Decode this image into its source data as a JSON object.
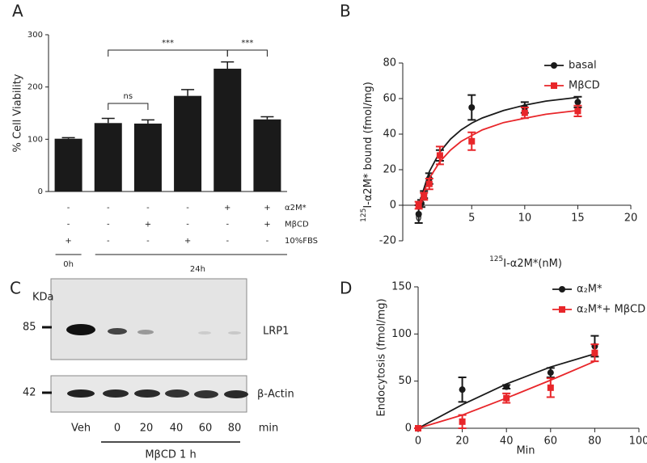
{
  "chart_data": [
    {
      "type": "bar",
      "label": "A",
      "ylabel": "% Cell Viability",
      "color": "#1a1a1a",
      "categories": [
        null,
        null,
        null,
        null,
        null,
        null
      ],
      "values": [
        101,
        131,
        130,
        183,
        235,
        138
      ],
      "errors": [
        2,
        9,
        7,
        12,
        13,
        5
      ],
      "ylim": [
        0,
        300
      ],
      "yticks": [
        0,
        100,
        200,
        300
      ],
      "annotations": [
        "***",
        "ns",
        "***"
      ],
      "conditions": [
        {
          "name": "α2M*",
          "signs": [
            "-",
            "-",
            "-",
            "-",
            "+",
            "+"
          ]
        },
        {
          "name": "MβCD",
          "signs": [
            "-",
            "-",
            "+",
            "-",
            "-",
            "+"
          ]
        },
        {
          "name": "10%FBS",
          "signs": [
            "+",
            "-",
            "-",
            "+",
            "-",
            "-"
          ]
        }
      ],
      "groups": [
        "0h",
        "24h"
      ]
    },
    {
      "type": "scatter",
      "label": "B",
      "ylabel": {
        "sup": "125",
        "text": "I-α2M* bound (fmol/mg)"
      },
      "xlabel": {
        "sup": "125",
        "text": "I-α2M*(nM)"
      },
      "xlim": [
        -1.5,
        20
      ],
      "xticks": [
        0,
        5,
        10,
        15,
        20
      ],
      "ylim": [
        -20,
        80
      ],
      "yticks": [
        -20,
        0,
        20,
        40,
        60,
        80
      ],
      "legend": "upper right",
      "series": [
        {
          "name": "basal",
          "color": "#1a1a1a",
          "marker": "circle",
          "x": [
            0,
            0.25,
            0.5,
            1,
            2,
            5,
            10,
            15
          ],
          "values": [
            -5,
            1,
            6,
            15,
            28,
            55,
            55,
            58
          ],
          "errors": [
            5,
            2,
            2,
            3,
            3,
            7,
            3,
            3
          ],
          "fit_x": [
            0,
            1,
            2,
            3,
            4,
            5,
            6,
            8,
            10,
            12,
            15
          ],
          "fit_values": [
            0,
            18.9,
            30,
            37.2,
            42.4,
            46.2,
            49.1,
            53.3,
            56.3,
            58.6,
            60.7
          ]
        },
        {
          "name": "MβCD",
          "color": "#e8262a",
          "marker": "square",
          "x": [
            0,
            0.5,
            1,
            2,
            5,
            10,
            15
          ],
          "values": [
            0,
            5,
            12,
            28,
            36,
            52,
            53
          ],
          "errors": [
            2,
            2,
            3,
            5,
            5,
            3,
            3
          ],
          "fit_x": [
            0,
            1,
            2,
            3,
            4,
            5,
            6,
            8,
            10,
            12,
            15
          ],
          "fit_values": [
            0,
            15.1,
            24.5,
            31,
            35.9,
            39.2,
            42.4,
            46.5,
            48.9,
            51.2,
            53.3
          ]
        }
      ]
    },
    {
      "type": "scatter",
      "label": "D",
      "ylabel": "Endocytosis (fmol/mg)",
      "xlabel": "Min",
      "xlim": [
        0,
        100
      ],
      "xticks": [
        0,
        20,
        40,
        60,
        80,
        100
      ],
      "ylim": [
        0,
        150
      ],
      "yticks": [
        0,
        50,
        100,
        150
      ],
      "legend": "upper right",
      "series": [
        {
          "name": "α₂M*",
          "color": "#1a1a1a",
          "marker": "circle",
          "x": [
            0,
            20,
            40,
            60,
            80
          ],
          "values": [
            0,
            41,
            44,
            59,
            87
          ],
          "errors": [
            0,
            13,
            2,
            5,
            11
          ],
          "fit_x": [
            0,
            20,
            40,
            60,
            80
          ],
          "fit_values": [
            0,
            25,
            47,
            65,
            79
          ]
        },
        {
          "name": "α₂M*+ MβCD",
          "color": "#e8262a",
          "marker": "square",
          "x": [
            0,
            20,
            40,
            60,
            80
          ],
          "values": [
            0,
            7,
            32,
            43,
            80
          ],
          "errors": [
            0,
            7,
            5,
            10,
            9
          ],
          "fit_x": [
            0,
            20,
            40,
            60,
            80
          ],
          "fit_values": [
            0,
            14,
            32,
            51,
            71
          ]
        }
      ]
    }
  ],
  "blot": {
    "label": "C",
    "unit": "KDa",
    "markers": [
      85,
      42
    ],
    "proteins": [
      "LRP1",
      "β-Actin"
    ],
    "lanes": [
      "Veh",
      "0",
      "20",
      "40",
      "60",
      "80"
    ],
    "lane_unit": "min",
    "treatment": "MβCD 1 h"
  }
}
